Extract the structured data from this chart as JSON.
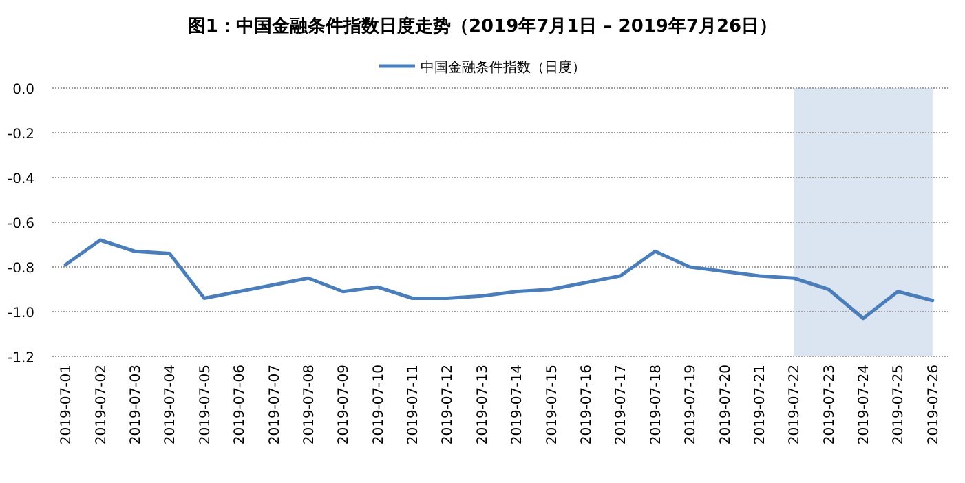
{
  "chart_data": {
    "type": "line",
    "title": "图1：中国金融条件指数日度走势（2019年7月1日 – 2019年7月26日）",
    "categories": [
      "2019-07-01",
      "2019-07-02",
      "2019-07-03",
      "2019-07-04",
      "2019-07-05",
      "2019-07-06",
      "2019-07-07",
      "2019-07-08",
      "2019-07-09",
      "2019-07-10",
      "2019-07-11",
      "2019-07-12",
      "2019-07-13",
      "2019-07-14",
      "2019-07-15",
      "2019-07-16",
      "2019-07-17",
      "2019-07-18",
      "2019-07-19",
      "2019-07-20",
      "2019-07-21",
      "2019-07-22",
      "2019-07-23",
      "2019-07-24",
      "2019-07-25",
      "2019-07-26"
    ],
    "series": [
      {
        "name": "中国金融条件指数（日度）",
        "color": "#4a7ebb",
        "values": [
          -0.79,
          -0.68,
          -0.73,
          -0.74,
          -0.94,
          -0.91,
          -0.88,
          -0.85,
          -0.91,
          -0.89,
          -0.94,
          -0.94,
          -0.93,
          -0.91,
          -0.9,
          -0.87,
          -0.84,
          -0.73,
          -0.8,
          -0.82,
          -0.84,
          -0.85,
          -0.9,
          -1.03,
          -0.91,
          -0.95
        ]
      }
    ],
    "ylim": [
      -1.2,
      0
    ],
    "yticks": [
      {
        "value": 0,
        "label": "0.0"
      },
      -0.2,
      -0.4,
      -0.6,
      -0.8,
      {
        "value": -1,
        "label": "-1.0"
      },
      -1.2
    ],
    "bands": [
      {
        "axis": "x",
        "from": "2019-07-22",
        "to": "2019-07-26",
        "color": "#dbe5f1"
      }
    ],
    "grid": "y",
    "legend": "top",
    "line_style": "solid"
  }
}
